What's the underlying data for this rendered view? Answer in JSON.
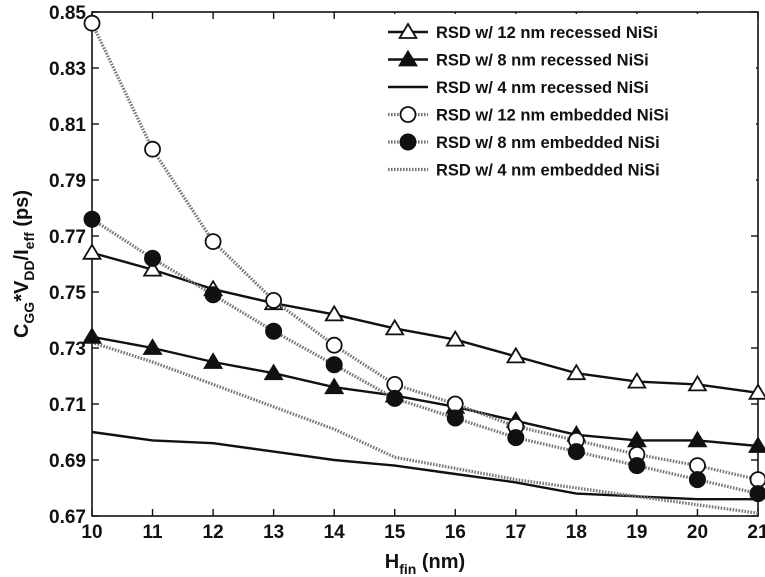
{
  "chart_data": {
    "type": "line",
    "title": "",
    "xlabel": {
      "main": "H",
      "sub": "fin",
      "rest": " (nm)"
    },
    "ylabel": {
      "p1": "C",
      "s1": "GG",
      "p2": "*V",
      "s2": "DD",
      "p3": "/I",
      "s3": "eff",
      "p4": " (ps)"
    },
    "xlim": [
      10,
      21
    ],
    "ylim": [
      0.67,
      0.85
    ],
    "xticks": [
      "10",
      "11",
      "12",
      "13",
      "14",
      "15",
      "16",
      "17",
      "18",
      "19",
      "20",
      "21"
    ],
    "yticks": [
      "0.67",
      "0.69",
      "0.71",
      "0.73",
      "0.75",
      "0.77",
      "0.79",
      "0.81",
      "0.83",
      "0.85"
    ],
    "grid": false,
    "legend_position": "top-right",
    "x": [
      10,
      11,
      12,
      13,
      14,
      15,
      16,
      17,
      18,
      19,
      20,
      21
    ],
    "series": [
      {
        "name": "RSD w/ 12 nm recessed NiSi",
        "marker": "triangle-open",
        "line": "solid",
        "color": "#111111",
        "values": [
          0.764,
          0.758,
          0.751,
          0.746,
          0.742,
          0.737,
          0.733,
          0.727,
          0.721,
          0.718,
          0.717,
          0.714
        ]
      },
      {
        "name": "RSD w/ 8 nm recessed NiSi",
        "marker": "triangle-filled",
        "line": "solid",
        "color": "#111111",
        "values": [
          0.734,
          0.73,
          0.725,
          0.721,
          0.716,
          0.713,
          0.709,
          0.704,
          0.699,
          0.697,
          0.697,
          0.695
        ]
      },
      {
        "name": "RSD w/ 4 nm recessed NiSi",
        "marker": "none",
        "line": "solid",
        "color": "#111111",
        "values": [
          0.7,
          0.697,
          0.696,
          0.693,
          0.69,
          0.688,
          0.685,
          0.682,
          0.678,
          0.677,
          0.676,
          0.676
        ]
      },
      {
        "name": "RSD w/ 12 nm embedded NiSi",
        "marker": "circle-open",
        "line": "dotted",
        "color": "#666666",
        "values": [
          0.846,
          0.801,
          0.768,
          0.747,
          0.731,
          0.717,
          0.71,
          0.702,
          0.697,
          0.692,
          0.688,
          0.683
        ]
      },
      {
        "name": "RSD w/ 8 nm embedded NiSi",
        "marker": "circle-filled",
        "line": "dotted",
        "color": "#666666",
        "values": [
          0.776,
          0.762,
          0.749,
          0.736,
          0.724,
          0.712,
          0.705,
          0.698,
          0.693,
          0.688,
          0.683,
          0.678
        ]
      },
      {
        "name": "RSD w/ 4 nm embedded NiSi",
        "marker": "none",
        "line": "dotted",
        "color": "#666666",
        "values": [
          0.732,
          0.725,
          0.717,
          0.709,
          0.701,
          0.691,
          0.687,
          0.683,
          0.68,
          0.677,
          0.674,
          0.671
        ]
      }
    ]
  }
}
